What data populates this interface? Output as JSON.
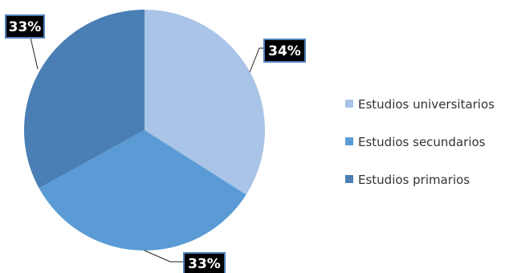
{
  "chart_data": {
    "type": "pie",
    "categories": [
      "Estudios universitarios",
      "Estudios secundarios",
      "Estudios primarios"
    ],
    "values": [
      34,
      33,
      33
    ],
    "labels": [
      "34%",
      "33%",
      "33%"
    ],
    "colors": [
      "#a9c4e7",
      "#5b9bd5",
      "#4a7fb5"
    ],
    "title": "",
    "legend_placement": "right"
  }
}
